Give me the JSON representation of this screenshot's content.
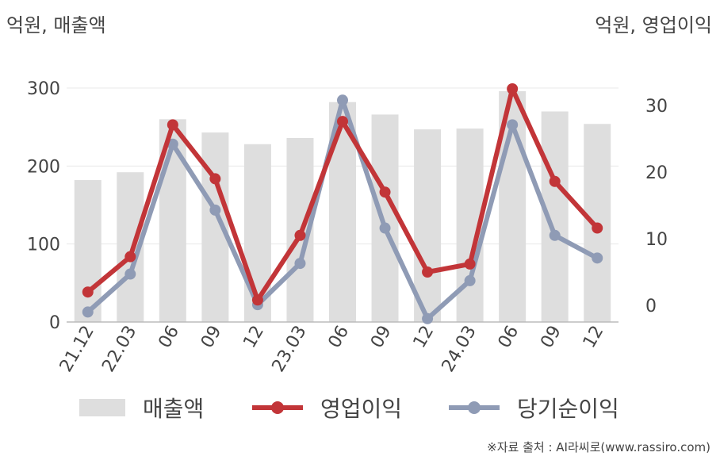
{
  "header": {
    "left_unit": "억원, 매출액",
    "right_unit": "억원, 영업이익"
  },
  "source": "※자료 출처 : AI라씨로(www.rassiro.com)",
  "colors": {
    "bar": "#dedede",
    "op": "#c23538",
    "net": "#8f9bb5",
    "grid": "#e8e8e8",
    "axis": "#bbbbbb"
  },
  "chart_data": {
    "type": "bar",
    "categories": [
      "21.12",
      "22.03",
      "06",
      "09",
      "12",
      "23.03",
      "06",
      "09",
      "12",
      "24.03",
      "06",
      "09",
      "12"
    ],
    "series": [
      {
        "name": "매출액",
        "type": "bar",
        "axis": "left",
        "values": [
          182,
          192,
          260,
          243,
          228,
          236,
          282,
          266,
          247,
          248,
          296,
          270,
          254
        ]
      },
      {
        "name": "영업이익",
        "type": "line",
        "axis": "right",
        "values": [
          2.0,
          7.3,
          27.1,
          19.0,
          0.8,
          10.5,
          27.6,
          17.0,
          5.0,
          6.2,
          32.5,
          18.6,
          11.6
        ]
      },
      {
        "name": "당기순이익",
        "type": "line",
        "axis": "right",
        "values": [
          -1.0,
          4.7,
          24.2,
          14.3,
          0.1,
          6.3,
          30.8,
          11.6,
          -2.0,
          3.7,
          27.1,
          10.5,
          7.1
        ]
      }
    ],
    "y_left": {
      "ylim": [
        0,
        300
      ],
      "ticks": [
        0,
        100,
        200,
        300
      ]
    },
    "y_right": {
      "ylim": [
        -2.5,
        35.3
      ],
      "ticks": [
        0,
        10,
        20,
        30
      ]
    },
    "grid": true,
    "legend": "bottom"
  }
}
